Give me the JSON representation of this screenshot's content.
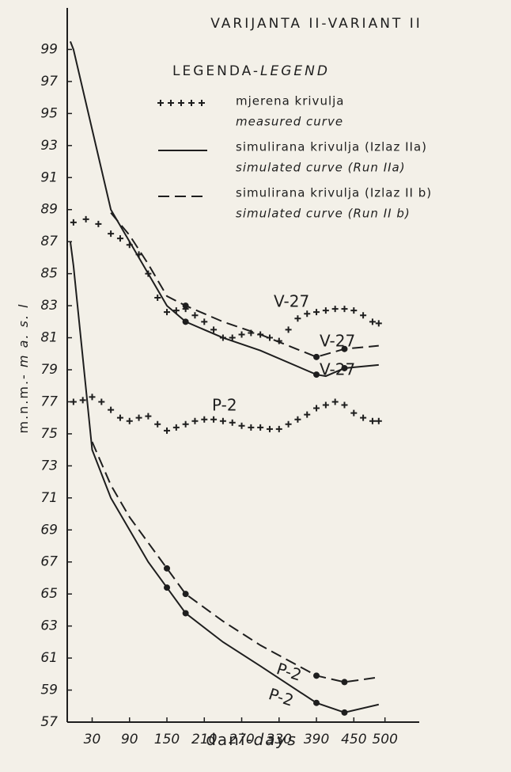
{
  "chart_data": {
    "type": "line",
    "title": "VARIJANTA II-VARIANT II",
    "legend_title": [
      "LEGENDA-",
      "LEGEND"
    ],
    "legend": [
      {
        "style": "crosses",
        "label": "mjerena krivulja",
        "label_en": "measured curve"
      },
      {
        "style": "solid",
        "label": "simulirana krivulja (Izlaz IIa)",
        "label_en": "simulated curve (Run IIa)"
      },
      {
        "style": "dashed",
        "label": "simulirana krivulja (Izlaz II b)",
        "label_en": "simulated curve (Run II b)"
      }
    ],
    "x_label": [
      "dani-",
      "days"
    ],
    "y_label": [
      "m.n.m.- ",
      "m a. s. l"
    ],
    "xlim": [
      -10,
      555
    ],
    "ylim": [
      57,
      101
    ],
    "xticks": [
      30,
      90,
      150,
      210,
      270,
      330,
      390,
      450,
      500
    ],
    "yticks": [
      57,
      59,
      61,
      63,
      65,
      67,
      69,
      71,
      73,
      75,
      77,
      79,
      81,
      83,
      85,
      87,
      89,
      91,
      93,
      95,
      97,
      99
    ],
    "grid": false,
    "color": "#1e1e1e",
    "series": [
      {
        "name": "V-27",
        "style": "crosses",
        "x": [
          0,
          20,
          40,
          60,
          75,
          90,
          105,
          120,
          135,
          150,
          165,
          180,
          195,
          210,
          225,
          240,
          255,
          270,
          285,
          300,
          315,
          330,
          345,
          360,
          375,
          390,
          405,
          420,
          435,
          450,
          465,
          480,
          490
        ],
        "values": [
          88.2,
          88.4,
          88.1,
          87.5,
          87.2,
          86.8,
          86.2,
          85.0,
          83.5,
          82.6,
          82.7,
          82.8,
          82.4,
          82.0,
          81.5,
          81.0,
          81.0,
          81.2,
          81.3,
          81.2,
          81.0,
          80.8,
          81.5,
          82.2,
          82.5,
          82.6,
          82.7,
          82.8,
          82.8,
          82.7,
          82.4,
          82.0,
          81.9
        ]
      },
      {
        "name": "V-27",
        "style": "solid",
        "x": [
          -5,
          0,
          30,
          60,
          90,
          120,
          150,
          180,
          240,
          300,
          390,
          405,
          435,
          490
        ],
        "values": [
          99.5,
          99,
          94,
          89,
          87,
          85,
          83,
          82,
          81,
          80.2,
          78.7,
          78.6,
          79.1,
          79.3
        ],
        "marked": [
          7,
          10,
          12
        ]
      },
      {
        "name": "V-27",
        "style": "dashed",
        "x": [
          60,
          90,
          120,
          150,
          180,
          240,
          300,
          390,
          435,
          490
        ],
        "values": [
          88.8,
          87.4,
          85.6,
          83.6,
          83.0,
          82.0,
          81.2,
          79.8,
          80.3,
          80.5
        ],
        "marked": [
          4,
          7,
          8
        ]
      },
      {
        "name": "P-2",
        "style": "crosses",
        "x": [
          0,
          15,
          30,
          45,
          60,
          75,
          90,
          105,
          120,
          135,
          150,
          165,
          180,
          195,
          210,
          225,
          240,
          255,
          270,
          285,
          300,
          315,
          330,
          345,
          360,
          375,
          390,
          405,
          420,
          435,
          450,
          465,
          480,
          490
        ],
        "values": [
          77.0,
          77.1,
          77.3,
          77.0,
          76.5,
          76.0,
          75.8,
          76.0,
          76.1,
          75.6,
          75.2,
          75.4,
          75.6,
          75.8,
          75.9,
          75.9,
          75.8,
          75.7,
          75.5,
          75.4,
          75.4,
          75.3,
          75.3,
          75.6,
          75.9,
          76.2,
          76.6,
          76.8,
          77.0,
          76.8,
          76.3,
          76.0,
          75.8,
          75.8
        ]
      },
      {
        "name": "P-2",
        "style": "solid",
        "x": [
          -5,
          0,
          30,
          60,
          90,
          120,
          150,
          180,
          240,
          300,
          390,
          435,
          490
        ],
        "values": [
          87,
          85.5,
          74,
          71,
          69,
          67,
          65.4,
          63.8,
          62,
          60.5,
          58.2,
          57.6,
          58.1
        ],
        "marked": [
          6,
          7,
          10,
          11
        ]
      },
      {
        "name": "P-2",
        "style": "dashed",
        "x": [
          30,
          60,
          90,
          120,
          150,
          180,
          240,
          300,
          390,
          435,
          490
        ],
        "values": [
          74.5,
          71.8,
          69.8,
          68.2,
          66.6,
          65.0,
          63.3,
          61.8,
          59.9,
          59.5,
          59.8
        ],
        "marked": [
          4,
          5,
          8,
          9
        ]
      }
    ]
  }
}
